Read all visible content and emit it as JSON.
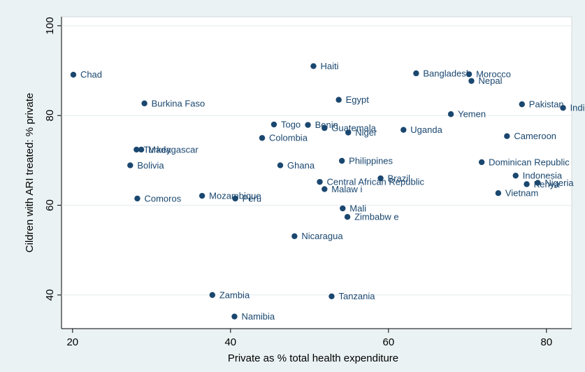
{
  "chart_data": {
    "type": "scatter",
    "xlabel": "Private as % total health expenditure",
    "ylabel": "Cildren with ARI treated: % private",
    "color": "#1a476f",
    "grid": true,
    "xlim": [
      18.6,
      83.2
    ],
    "ylim": [
      32.5,
      102
    ],
    "xticks": [
      20,
      40,
      60,
      80
    ],
    "yticks": [
      40,
      60,
      80,
      100
    ],
    "labels": [
      "Chad",
      "Haiti",
      "Bangladesh",
      "Morocco",
      "Nepal",
      "Burkina Faso",
      "Egypt",
      "Pakistan",
      "India",
      "Yemen",
      "Togo",
      "Benin",
      "Guatemala",
      "Niger",
      "Uganda",
      "Colombia",
      "Cameroon",
      "Turkey",
      "Madagascar",
      "Philippines",
      "Bolivia",
      "Ghana",
      "Dominican Republic",
      "Indonesia",
      "Brazil",
      "Central African Republic",
      "Kenya",
      "Nigeria",
      "Malaw i",
      "Vietnam",
      "Mozambique",
      "Comoros",
      "Peru",
      "Mali",
      "Zimbabw e",
      "Nicaragua",
      "Zambia",
      "Tanzania",
      "Namibia"
    ],
    "x": [
      20.1,
      50.5,
      63.5,
      70.2,
      70.5,
      29.1,
      53.7,
      76.9,
      82.1,
      67.9,
      45.5,
      49.8,
      51.9,
      54.9,
      61.9,
      44.0,
      75.0,
      28.1,
      28.7,
      54.1,
      27.3,
      46.3,
      71.8,
      76.1,
      59.0,
      51.3,
      77.5,
      78.9,
      51.9,
      73.9,
      36.4,
      28.2,
      40.6,
      54.2,
      54.8,
      48.1,
      37.7,
      52.8,
      40.5
    ],
    "y": [
      89.1,
      91.0,
      89.4,
      89.2,
      87.7,
      82.7,
      83.5,
      82.5,
      81.7,
      80.3,
      78.0,
      77.9,
      77.2,
      76.2,
      76.8,
      75.0,
      75.4,
      72.4,
      72.4,
      69.9,
      68.9,
      68.9,
      69.6,
      66.6,
      66.0,
      65.2,
      64.7,
      65.0,
      63.6,
      62.7,
      62.1,
      61.5,
      61.5,
      59.3,
      57.4,
      53.1,
      40.0,
      39.7,
      35.2
    ]
  }
}
